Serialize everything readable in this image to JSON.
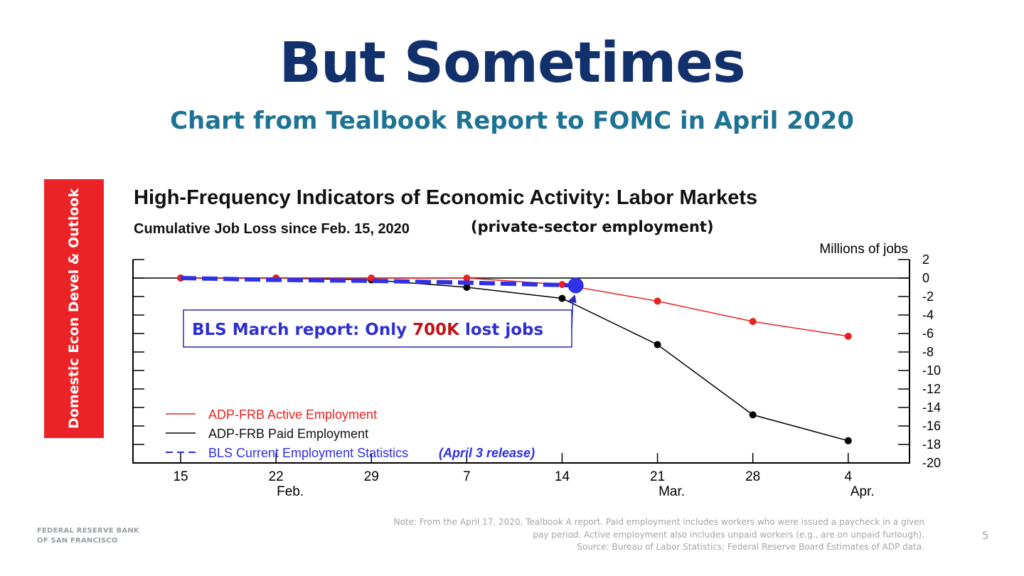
{
  "slide": {
    "title": "But Sometimes",
    "subtitle": "Chart from Tealbook Report to FOMC in April 2020",
    "side_label": "Domestic Econ Devel & Outlook",
    "page_number": "5",
    "footer_org": [
      "FEDERAL RESERVE BANK",
      "OF SAN FRANCISCO"
    ],
    "note_lines": [
      "Note: From the April 17, 2020, Tealbook A report. Paid employment includes workers who were issued a paycheck in a given",
      "pay period. Active employment also includes unpaid workers (e.g., are on unpaid furlough).",
      "Source: Bureau of Labor Statistics; Federal Reserve Board Estimates of ADP data."
    ],
    "callout": {
      "prefix": "BLS March report: Only ",
      "highlight": "700K",
      "suffix": " lost jobs"
    }
  },
  "chart_data": {
    "type": "line",
    "title": "High-Frequency Indicators of Economic Activity: Labor Markets",
    "subtitle": "Cumulative Job Loss since Feb. 15, 2020",
    "subtitle_note": "(private-sector employment)",
    "ylabel": "Millions of jobs",
    "ylim": [
      -20,
      2
    ],
    "yticks": [
      2,
      0,
      -2,
      -4,
      -6,
      -8,
      -10,
      -12,
      -14,
      -16,
      -18,
      -20
    ],
    "xticks": [
      {
        "x": 0,
        "label": "15"
      },
      {
        "x": 7,
        "label": "22"
      },
      {
        "x": 14,
        "label": "29"
      },
      {
        "x": 21,
        "label": "7"
      },
      {
        "x": 28,
        "label": "14"
      },
      {
        "x": 35,
        "label": "21"
      },
      {
        "x": 42,
        "label": "28"
      },
      {
        "x": 49,
        "label": "4"
      }
    ],
    "month_labels": [
      {
        "x": 7,
        "label": "Feb."
      },
      {
        "x": 35,
        "label": "Mar."
      },
      {
        "x": 49,
        "label": "Apr."
      }
    ],
    "xlim": [
      -3.5,
      53.5
    ],
    "legend_position": "bottom-left",
    "series": [
      {
        "name": "ADP-FRB Active Employment",
        "color": "#e8231f",
        "style": "solid",
        "points": [
          [
            0,
            0
          ],
          [
            7,
            0
          ],
          [
            14,
            0
          ],
          [
            21,
            0
          ],
          [
            28,
            -0.7
          ],
          [
            35,
            -2.5
          ],
          [
            42,
            -4.7
          ],
          [
            49,
            -6.3
          ]
        ]
      },
      {
        "name": "ADP-FRB Paid Employment",
        "color": "#000000",
        "style": "solid",
        "points": [
          [
            0,
            0
          ],
          [
            7,
            0
          ],
          [
            14,
            -0.2
          ],
          [
            21,
            -1.0
          ],
          [
            28,
            -2.2
          ],
          [
            35,
            -7.2
          ],
          [
            42,
            -14.8
          ],
          [
            49,
            -17.6
          ]
        ]
      },
      {
        "name": "BLS Current Employment Statistics",
        "name_note": "(April 3 release)",
        "color": "#3030e6",
        "style": "dashed",
        "points": [
          [
            0,
            0
          ],
          [
            7,
            -0.2
          ],
          [
            14,
            -0.3
          ],
          [
            21,
            -0.5
          ],
          [
            29,
            -0.8
          ]
        ]
      }
    ]
  }
}
